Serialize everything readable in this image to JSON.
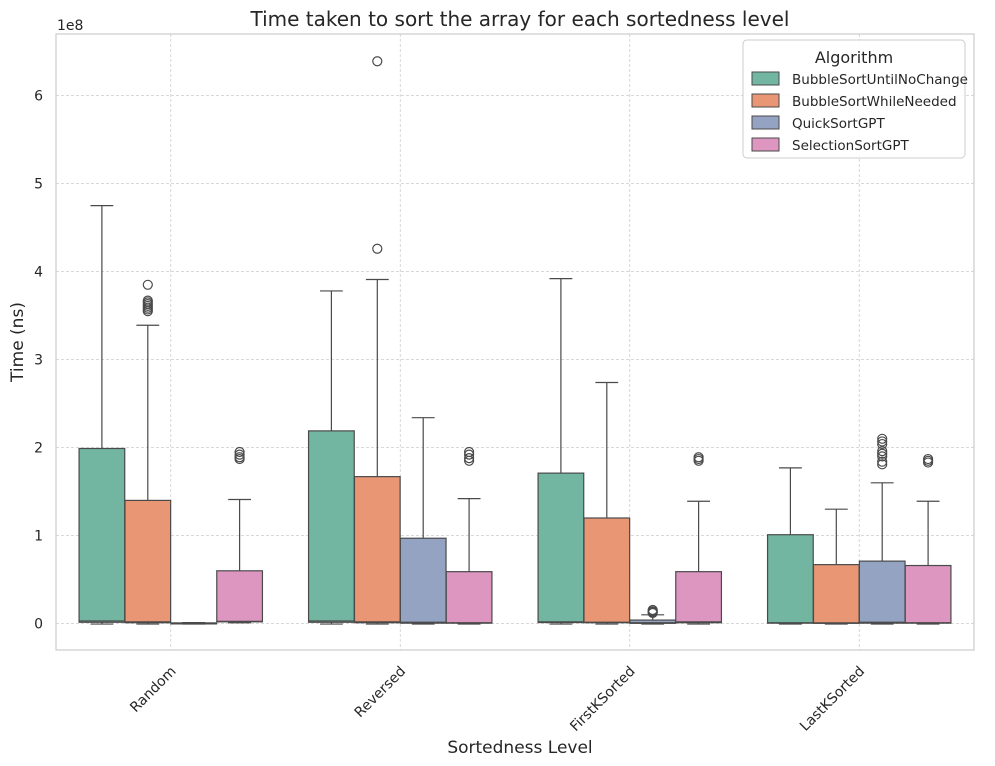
{
  "chart_data": {
    "type": "box",
    "title": "Time taken to sort the array for each sortedness level",
    "xlabel": "Sortedness Level",
    "ylabel": "Time (ns)",
    "y_offset_label": "1e8",
    "y_scale": 100000000,
    "ylim": [
      -0.3,
      6.7
    ],
    "yticks": [
      0,
      1,
      2,
      3,
      4,
      5,
      6
    ],
    "grid": true,
    "legend_position": "top-right",
    "legend_title": "Algorithm",
    "categories": [
      "Random",
      "Reversed",
      "FirstKSorted",
      "LastKSorted"
    ],
    "series": [
      {
        "name": "BubbleSortUntilNoChange",
        "color": "#72b6a1",
        "boxes": [
          {
            "whisker_low": -0.005,
            "q1": 0.015,
            "median": 0.03,
            "q3": 1.99,
            "whisker_high": 4.75,
            "outliers": []
          },
          {
            "whisker_low": -0.005,
            "q1": 0.015,
            "median": 0.03,
            "q3": 2.19,
            "whisker_high": 3.78,
            "outliers": []
          },
          {
            "whisker_low": -0.005,
            "q1": 0.012,
            "median": 0.02,
            "q3": 1.71,
            "whisker_high": 3.92,
            "outliers": []
          },
          {
            "whisker_low": -0.005,
            "q1": 0.005,
            "median": 0.01,
            "q3": 1.01,
            "whisker_high": 1.77,
            "outliers": []
          }
        ]
      },
      {
        "name": "BubbleSortWhileNeeded",
        "color": "#e99675",
        "boxes": [
          {
            "whisker_low": -0.005,
            "q1": 0.01,
            "median": 0.02,
            "q3": 1.4,
            "whisker_high": 3.39,
            "outliers": [
              3.85,
              3.67,
              3.65,
              3.63,
              3.61,
              3.59,
              3.57,
              3.55
            ]
          },
          {
            "whisker_low": -0.005,
            "q1": 0.01,
            "median": 0.02,
            "q3": 1.67,
            "whisker_high": 3.91,
            "outliers": [
              6.39,
              4.26
            ]
          },
          {
            "whisker_low": -0.005,
            "q1": 0.01,
            "median": 0.015,
            "q3": 1.2,
            "whisker_high": 2.74,
            "outliers": []
          },
          {
            "whisker_low": -0.005,
            "q1": 0.003,
            "median": 0.008,
            "q3": 0.67,
            "whisker_high": 1.3,
            "outliers": []
          }
        ]
      },
      {
        "name": "QuickSortGPT",
        "color": "#95a3c3",
        "boxes": [
          {
            "whisker_low": -0.005,
            "q1": 0.0,
            "median": 0.003,
            "q3": 0.008,
            "whisker_high": 0.012,
            "outliers": []
          },
          {
            "whisker_low": -0.005,
            "q1": 0.005,
            "median": 0.015,
            "q3": 0.97,
            "whisker_high": 2.34,
            "outliers": []
          },
          {
            "whisker_low": -0.005,
            "q1": 0.003,
            "median": 0.01,
            "q3": 0.04,
            "whisker_high": 0.1,
            "outliers": [
              0.155,
              0.14,
              0.13,
              0.12
            ]
          },
          {
            "whisker_low": -0.005,
            "q1": 0.005,
            "median": 0.015,
            "q3": 0.71,
            "whisker_high": 1.6,
            "outliers": [
              2.1,
              2.07,
              2.04,
              1.96,
              1.93,
              1.9,
              1.84,
              1.81
            ]
          }
        ]
      },
      {
        "name": "SelectionSortGPT",
        "color": "#dc96c0",
        "boxes": [
          {
            "whisker_low": 0.01,
            "q1": 0.02,
            "median": 0.025,
            "q3": 0.6,
            "whisker_high": 1.41,
            "outliers": [
              1.95,
              1.92,
              1.89,
              1.87
            ]
          },
          {
            "whisker_low": -0.005,
            "q1": 0.005,
            "median": 0.01,
            "q3": 0.59,
            "whisker_high": 1.42,
            "outliers": [
              1.95,
              1.92,
              1.88,
              1.85
            ]
          },
          {
            "whisker_low": -0.005,
            "q1": 0.01,
            "median": 0.02,
            "q3": 0.59,
            "whisker_high": 1.39,
            "outliers": [
              1.89,
              1.87,
              1.85
            ]
          },
          {
            "whisker_low": -0.005,
            "q1": 0.005,
            "median": 0.01,
            "q3": 0.66,
            "whisker_high": 1.39,
            "outliers": [
              1.87,
              1.85,
              1.83
            ]
          }
        ]
      }
    ]
  }
}
